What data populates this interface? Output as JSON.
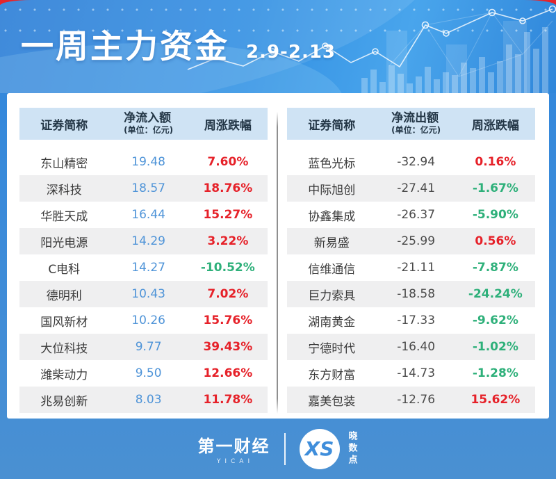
{
  "header": {
    "title": "一周主力资金",
    "date_range": "2.9-2.13"
  },
  "tables": {
    "inflow": {
      "col_name": "证券简称",
      "col_value": "净流入额",
      "col_value_unit": "(单位：亿元)",
      "col_pct": "周涨跌幅",
      "rows": [
        {
          "name": "东山精密",
          "value": "19.48",
          "pct": "7.60%"
        },
        {
          "name": "深科技",
          "value": "18.57",
          "pct": "18.76%"
        },
        {
          "name": "华胜天成",
          "value": "16.44",
          "pct": "15.27%"
        },
        {
          "name": "阳光电源",
          "value": "14.29",
          "pct": "3.22%"
        },
        {
          "name": "C电科",
          "value": "14.27",
          "pct": "-10.52%"
        },
        {
          "name": "德明利",
          "value": "10.43",
          "pct": "7.02%"
        },
        {
          "name": "国风新材",
          "value": "10.26",
          "pct": "15.76%"
        },
        {
          "name": "大位科技",
          "value": "9.77",
          "pct": "39.43%"
        },
        {
          "name": "潍柴动力",
          "value": "9.50",
          "pct": "12.66%"
        },
        {
          "name": "兆易创新",
          "value": "8.03",
          "pct": "11.78%"
        }
      ]
    },
    "outflow": {
      "col_name": "证券简称",
      "col_value": "净流出额",
      "col_value_unit": "(单位：亿元)",
      "col_pct": "周涨跌幅",
      "rows": [
        {
          "name": "蓝色光标",
          "value": "-32.94",
          "pct": "0.16%"
        },
        {
          "name": "中际旭创",
          "value": "-27.41",
          "pct": "-1.67%"
        },
        {
          "name": "协鑫集成",
          "value": "-26.37",
          "pct": "-5.90%"
        },
        {
          "name": "新易盛",
          "value": "-25.99",
          "pct": "0.56%"
        },
        {
          "name": "信维通信",
          "value": "-21.11",
          "pct": "-7.87%"
        },
        {
          "name": "巨力索具",
          "value": "-18.58",
          "pct": "-24.24%"
        },
        {
          "name": "湖南黄金",
          "value": "-17.33",
          "pct": "-9.62%"
        },
        {
          "name": "宁德时代",
          "value": "-16.40",
          "pct": "-1.02%"
        },
        {
          "name": "东方财富",
          "value": "-14.73",
          "pct": "-1.28%"
        },
        {
          "name": "嘉美包装",
          "value": "-12.76",
          "pct": "15.62%"
        }
      ]
    }
  },
  "footer": {
    "brand_cn": "第一财经",
    "brand_en": "YICAI",
    "logo_xs": "XS",
    "logo_label": "晓数点"
  },
  "colors": {
    "accent_red": "#e5252b",
    "thead_bg": "#cfe3f4",
    "row_alt": "#efeff0",
    "inflow_value": "#4f94d8",
    "outflow_value": "#4a4a4a",
    "up": "#e62129",
    "down": "#2eb07a"
  },
  "chart_data": [
    {
      "type": "table",
      "title": "一周主力资金 净流入额 2.9-2.13",
      "columns": [
        "证券简称",
        "净流入额(单位:亿元)",
        "周涨跌幅"
      ],
      "rows": [
        [
          "东山精密",
          19.48,
          "7.60%"
        ],
        [
          "深科技",
          18.57,
          "18.76%"
        ],
        [
          "华胜天成",
          16.44,
          "15.27%"
        ],
        [
          "阳光电源",
          14.29,
          "3.22%"
        ],
        [
          "C电科",
          14.27,
          "-10.52%"
        ],
        [
          "德明利",
          10.43,
          "7.02%"
        ],
        [
          "国风新材",
          10.26,
          "15.76%"
        ],
        [
          "大位科技",
          9.77,
          "39.43%"
        ],
        [
          "潍柴动力",
          9.5,
          "12.66%"
        ],
        [
          "兆易创新",
          8.03,
          "11.78%"
        ]
      ]
    },
    {
      "type": "table",
      "title": "一周主力资金 净流出额 2.9-2.13",
      "columns": [
        "证券简称",
        "净流出额(单位:亿元)",
        "周涨跌幅"
      ],
      "rows": [
        [
          "蓝色光标",
          -32.94,
          "0.16%"
        ],
        [
          "中际旭创",
          -27.41,
          "-1.67%"
        ],
        [
          "协鑫集成",
          -26.37,
          "-5.90%"
        ],
        [
          "新易盛",
          -25.99,
          "0.56%"
        ],
        [
          "信维通信",
          -21.11,
          "-7.87%"
        ],
        [
          "巨力索具",
          -18.58,
          "-24.24%"
        ],
        [
          "湖南黄金",
          -17.33,
          "-9.62%"
        ],
        [
          "宁德时代",
          -16.4,
          "-1.02%"
        ],
        [
          "东方财富",
          -14.73,
          "-1.28%"
        ],
        [
          "嘉美包装",
          -12.76,
          "15.62%"
        ]
      ]
    }
  ]
}
